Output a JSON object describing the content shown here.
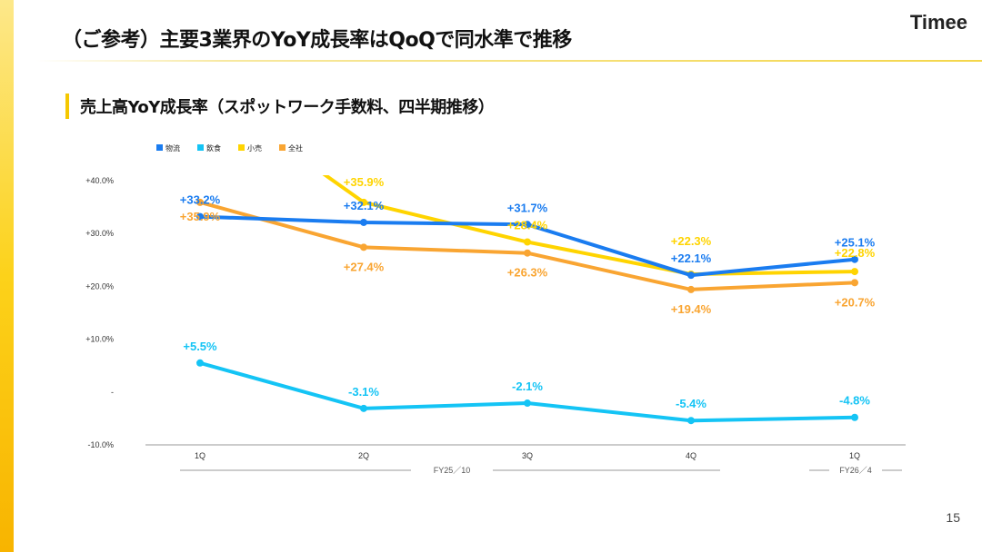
{
  "header": {
    "title": "（ご参考）主要3業界のYoY成長率はQoQで同水準で推移",
    "logo": "Timee"
  },
  "subtitle": "売上高YoY成長率（スポットワーク手数料、四半期推移）",
  "page_number": "15",
  "chart_data": {
    "type": "line",
    "categories": [
      "1Q",
      "2Q",
      "3Q",
      "4Q",
      "1Q"
    ],
    "groups": [
      {
        "label": "FY25／10",
        "span": [
          0,
          3
        ]
      },
      {
        "label": "FY26／4",
        "span": [
          4,
          4
        ]
      }
    ],
    "y_ticks": [
      {
        "v": 40,
        "label": "+40.0%"
      },
      {
        "v": 30,
        "label": "+30.0%"
      },
      {
        "v": 20,
        "label": "+20.0%"
      },
      {
        "v": 10,
        "label": "+10.0%"
      },
      {
        "v": 0,
        "label": "-"
      },
      {
        "v": -10,
        "label": "-10.0%"
      }
    ],
    "ylim": [
      -10,
      40
    ],
    "grid": false,
    "legend": "top-left",
    "series": [
      {
        "name": "物流",
        "color": "#1a7cf0",
        "values": [
          33.2,
          32.1,
          31.7,
          22.1,
          25.1
        ],
        "labels": [
          "+33.2%",
          "+32.1%",
          "+31.7%",
          "+22.1%",
          "+25.1%"
        ]
      },
      {
        "name": "飲食",
        "color": "#14c4f5",
        "values": [
          5.5,
          -3.1,
          -2.1,
          -5.4,
          -4.8
        ],
        "labels": [
          "+5.5%",
          "-3.1%",
          "-2.1%",
          "-5.4%",
          "-4.8%"
        ]
      },
      {
        "name": "小売",
        "color": "#ffd400",
        "values": [
          null,
          35.9,
          28.4,
          22.3,
          22.8
        ],
        "labels": [
          "",
          "+35.9%",
          "+28.4%",
          "+22.3%",
          "+22.8%"
        ]
      },
      {
        "name": "全社",
        "color": "#f9a532",
        "values": [
          35.9,
          27.4,
          26.3,
          19.4,
          20.7
        ],
        "labels": [
          "+35.9%",
          "+27.4%",
          "+26.3%",
          "+19.4%",
          "+20.7%"
        ]
      }
    ]
  }
}
